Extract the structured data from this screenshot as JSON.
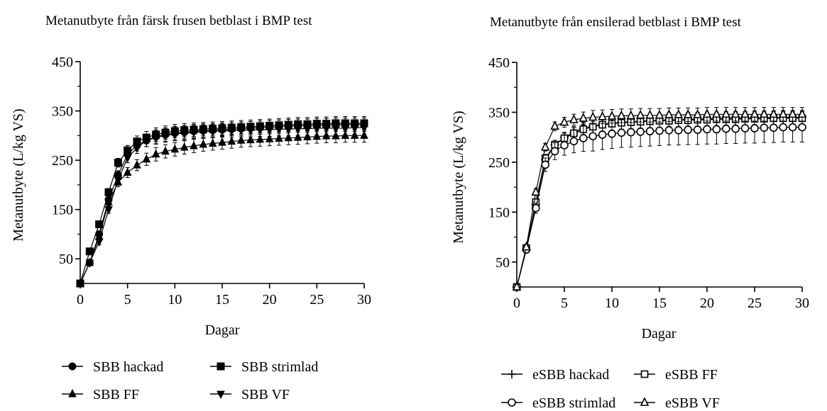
{
  "chart_data": [
    {
      "type": "line",
      "title": "Metanutbyte från färsk frusen betblast i BMP test",
      "xlabel": "Dagar",
      "ylabel": "Metanutbyte (L/kg VS)",
      "xlim": [
        0,
        30
      ],
      "ylim": [
        0,
        450
      ],
      "xticks": [
        "0",
        "5",
        "10",
        "15",
        "20",
        "25",
        "30"
      ],
      "yticks": [
        "50",
        "150",
        "250",
        "350",
        "450"
      ],
      "grid": false,
      "legend_position": "bottom",
      "x": [
        0,
        1,
        2,
        3,
        4,
        5,
        6,
        7,
        8,
        9,
        10,
        11,
        12,
        13,
        14,
        15,
        16,
        17,
        18,
        19,
        20,
        21,
        22,
        23,
        24,
        25,
        26,
        27,
        28,
        29,
        30
      ],
      "series": [
        {
          "name": "SBB hackad",
          "marker": "circle-filled",
          "values": [
            0,
            42,
            100,
            170,
            220,
            262,
            280,
            290,
            298,
            302,
            305,
            307,
            309,
            310,
            311,
            312,
            313,
            314,
            315,
            316,
            317,
            318,
            319,
            320,
            320,
            321,
            321,
            322,
            322,
            322,
            322
          ]
        },
        {
          "name": "SBB strimlad",
          "marker": "square-filled",
          "values": [
            0,
            65,
            120,
            185,
            245,
            270,
            288,
            296,
            302,
            306,
            309,
            311,
            312,
            313,
            314,
            315,
            316,
            317,
            318,
            319,
            320,
            321,
            322,
            323,
            323,
            324,
            324,
            325,
            325,
            325,
            325
          ]
        },
        {
          "name": "SBB FF",
          "marker": "triangle-up-filled",
          "values": [
            0,
            42,
            95,
            165,
            205,
            225,
            240,
            252,
            262,
            268,
            272,
            276,
            279,
            282,
            284,
            286,
            288,
            290,
            291,
            292,
            293,
            294,
            295,
            296,
            297,
            298,
            299,
            299,
            300,
            300,
            300
          ]
        },
        {
          "name": "SBB VF",
          "marker": "triangle-down-filled",
          "values": [
            0,
            42,
            85,
            150,
            210,
            255,
            275,
            290,
            296,
            300,
            303,
            305,
            307,
            308,
            309,
            310,
            310,
            311,
            311,
            312,
            312,
            313,
            313,
            314,
            314,
            315,
            315,
            315,
            315,
            316,
            316
          ]
        }
      ]
    },
    {
      "type": "line",
      "title": "Metanutbyte från ensilerad betblast i BMP test",
      "xlabel": "Dagar",
      "ylabel": "Metanutbyte (L/kg VS)",
      "xlim": [
        0,
        30
      ],
      "ylim": [
        0,
        450
      ],
      "xticks": [
        "0",
        "5",
        "10",
        "15",
        "20",
        "25",
        "30"
      ],
      "yticks": [
        "50",
        "150",
        "250",
        "350",
        "450"
      ],
      "grid": false,
      "legend_position": "bottom",
      "x": [
        0,
        1,
        2,
        3,
        4,
        5,
        6,
        7,
        8,
        9,
        10,
        11,
        12,
        13,
        14,
        15,
        16,
        17,
        18,
        19,
        20,
        21,
        22,
        23,
        24,
        25,
        26,
        27,
        28,
        29,
        30
      ],
      "series": [
        {
          "name": "eSBB hackad",
          "marker": "plus",
          "values": [
            0,
            75,
            165,
            255,
            285,
            300,
            310,
            318,
            322,
            326,
            328,
            330,
            331,
            332,
            333,
            334,
            335,
            335,
            336,
            336,
            337,
            337,
            338,
            338,
            338,
            339,
            339,
            339,
            340,
            340,
            340
          ]
        },
        {
          "name": "eSBB FF",
          "marker": "square-open",
          "values": [
            0,
            78,
            170,
            258,
            285,
            298,
            308,
            316,
            321,
            325,
            327,
            329,
            330,
            331,
            332,
            333,
            333,
            334,
            334,
            335,
            335,
            336,
            336,
            336,
            337,
            337,
            337,
            338,
            338,
            338,
            338
          ]
        },
        {
          "name": "eSBB strimlad",
          "marker": "circle-open",
          "values": [
            0,
            75,
            158,
            245,
            272,
            284,
            292,
            298,
            302,
            305,
            307,
            309,
            310,
            311,
            312,
            313,
            314,
            314,
            315,
            315,
            316,
            316,
            317,
            317,
            318,
            318,
            319,
            319,
            320,
            320,
            320
          ]
        },
        {
          "name": "eSBB VF",
          "marker": "triangle-up-open",
          "values": [
            0,
            80,
            190,
            280,
            322,
            330,
            335,
            338,
            340,
            341,
            342,
            343,
            343,
            344,
            344,
            344,
            345,
            345,
            345,
            345,
            346,
            346,
            346,
            346,
            346,
            346,
            346,
            346,
            346,
            346,
            346
          ]
        }
      ]
    }
  ]
}
